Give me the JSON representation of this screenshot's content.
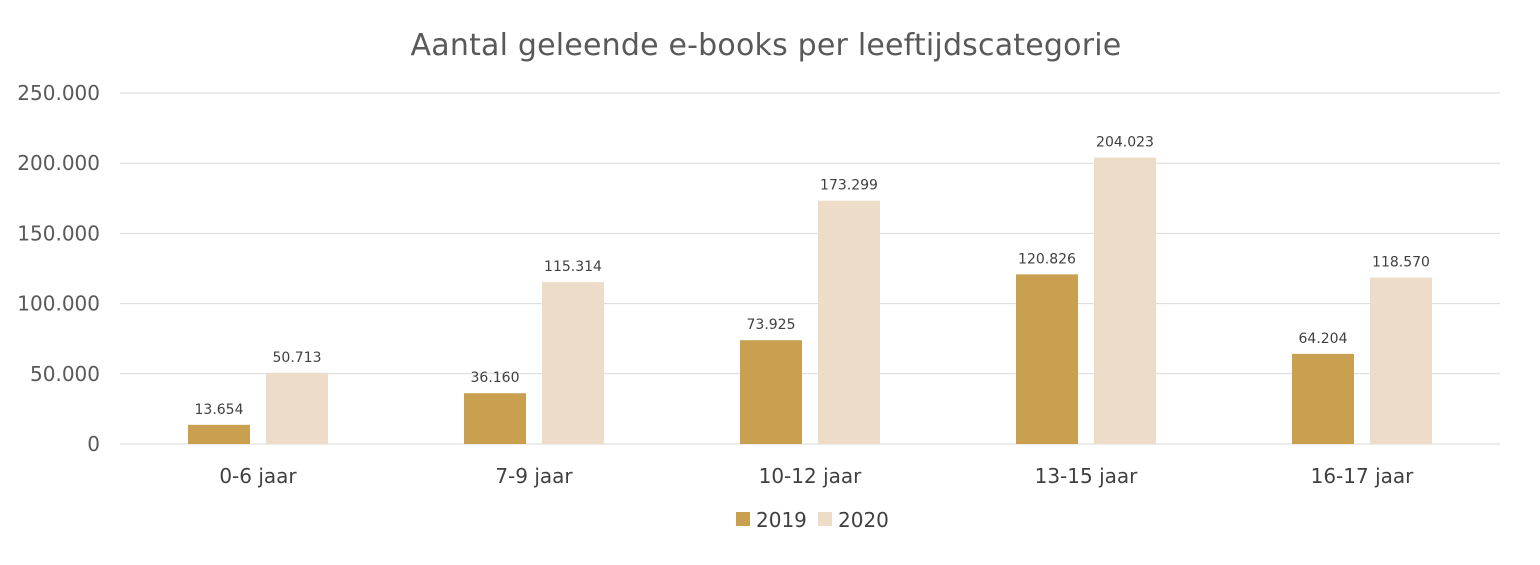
{
  "chart_data": {
    "type": "bar",
    "title": "Aantal geleende e-books per leeftijdscategorie",
    "categories": [
      "0-6 jaar",
      "7-9 jaar",
      "10-12 jaar",
      "13-15 jaar",
      "16-17 jaar"
    ],
    "series": [
      {
        "name": "2019",
        "color": "#c9a050",
        "values": [
          13654,
          36160,
          73925,
          120826,
          64204
        ],
        "labels": [
          "13.654",
          "36.160",
          "73.925",
          "120.826",
          "64.204"
        ]
      },
      {
        "name": "2020",
        "color": "#ecdcc8",
        "values": [
          50713,
          115314,
          173299,
          204023,
          118570
        ],
        "labels": [
          "50.713",
          "115.314",
          "173.299",
          "204.023",
          "118.570"
        ]
      }
    ],
    "ylim": [
      0,
      250000
    ],
    "yticks": [
      0,
      50000,
      100000,
      150000,
      200000,
      250000
    ],
    "ytick_labels": [
      "0",
      "50.000",
      "100.000",
      "150.000",
      "200.000",
      "250.000"
    ],
    "xlabel": "",
    "ylabel": "",
    "grid": true,
    "legend_position": "bottom"
  }
}
